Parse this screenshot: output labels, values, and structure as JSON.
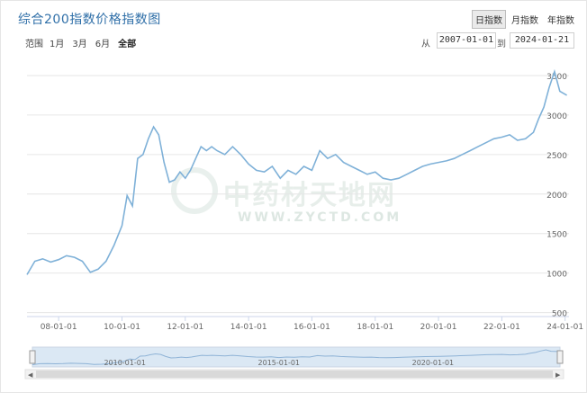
{
  "title": "综合200指数价格指数图",
  "period_tabs": [
    "日指数",
    "月指数",
    "年指数"
  ],
  "period_active": 0,
  "range_label": "范围",
  "zoom_buttons": [
    "1月",
    "3月",
    "6月",
    "全部"
  ],
  "zoom_active": 3,
  "date_from_label": "从",
  "date_to_label": "到",
  "date_from": "2007-01-01",
  "date_to": "2024-01-21",
  "watermark": {
    "cn": "中药材天地网",
    "en": "WWW.ZYCTD.COM"
  },
  "colors": {
    "line": "#7fb1d8",
    "grid": "#e6e6e6",
    "title": "#2f6fa8",
    "navigator": "#dbe8f4"
  },
  "chart_data": {
    "type": "line",
    "title": "综合200指数价格指数图",
    "xlabel": "",
    "ylabel": "",
    "ylim": [
      500,
      3500
    ],
    "yticks": [
      500,
      1000,
      1500,
      2000,
      2500,
      3000,
      3500
    ],
    "xticks": [
      "08-01-01",
      "10-01-01",
      "12-01-01",
      "14-01-01",
      "16-01-01",
      "18-01-01",
      "20-01-01",
      "22-01-01",
      "24-01-01"
    ],
    "grid": true,
    "navigator_ticks": [
      "2010-01-01",
      "2015-01-01",
      "2020-01-01"
    ],
    "series": [
      {
        "x": [
          "2007-01-01",
          "2007-04-01",
          "2007-07-01",
          "2007-10-01",
          "2008-01-01",
          "2008-04-01",
          "2008-07-01",
          "2008-10-01",
          "2009-01-01",
          "2009-04-01",
          "2009-07-01",
          "2009-10-01",
          "2010-01-01",
          "2010-03-01",
          "2010-05-01",
          "2010-07-01",
          "2010-09-01",
          "2010-11-01",
          "2011-01-01",
          "2011-03-01",
          "2011-05-01",
          "2011-07-01",
          "2011-09-01",
          "2011-11-01",
          "2012-01-01",
          "2012-03-01",
          "2012-05-01",
          "2012-07-01",
          "2012-09-01",
          "2012-11-01",
          "2013-01-01",
          "2013-04-01",
          "2013-07-01",
          "2013-10-01",
          "2014-01-01",
          "2014-04-01",
          "2014-07-01",
          "2014-10-01",
          "2015-01-01",
          "2015-04-01",
          "2015-07-01",
          "2015-10-01",
          "2016-01-01",
          "2016-04-01",
          "2016-07-01",
          "2016-10-01",
          "2017-01-01",
          "2017-04-01",
          "2017-07-01",
          "2017-10-01",
          "2018-01-01",
          "2018-04-01",
          "2018-07-01",
          "2018-10-01",
          "2019-01-01",
          "2019-04-01",
          "2019-07-01",
          "2019-10-01",
          "2020-01-01",
          "2020-04-01",
          "2020-07-01",
          "2020-10-01",
          "2021-01-01",
          "2021-04-01",
          "2021-07-01",
          "2021-10-01",
          "2022-01-01",
          "2022-04-01",
          "2022-07-01",
          "2022-10-01",
          "2023-01-01",
          "2023-03-01",
          "2023-05-01",
          "2023-07-01",
          "2023-09-01",
          "2023-11-01",
          "2024-01-21"
        ],
        "y": [
          980,
          1150,
          1180,
          1140,
          1170,
          1220,
          1200,
          1150,
          1010,
          1050,
          1150,
          1350,
          1600,
          1980,
          1850,
          2450,
          2500,
          2700,
          2850,
          2750,
          2400,
          2150,
          2180,
          2280,
          2200,
          2300,
          2450,
          2600,
          2550,
          2600,
          2550,
          2500,
          2600,
          2500,
          2380,
          2300,
          2280,
          2350,
          2200,
          2300,
          2250,
          2350,
          2300,
          2550,
          2450,
          2500,
          2400,
          2350,
          2300,
          2250,
          2280,
          2200,
          2180,
          2200,
          2250,
          2300,
          2350,
          2380,
          2400,
          2420,
          2450,
          2500,
          2550,
          2600,
          2650,
          2700,
          2720,
          2750,
          2680,
          2700,
          2780,
          2950,
          3100,
          3350,
          3550,
          3300,
          3250
        ]
      }
    ]
  }
}
